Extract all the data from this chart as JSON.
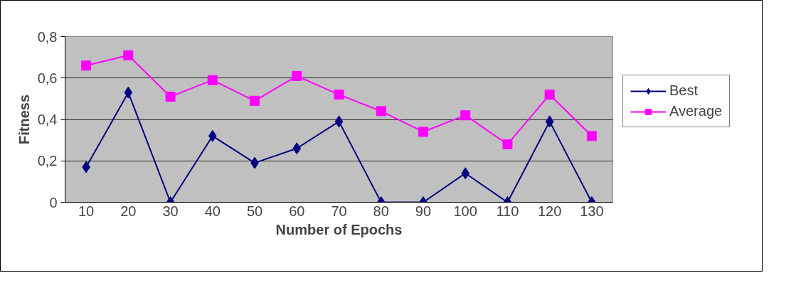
{
  "chart_data": {
    "type": "line",
    "xlabel": "Number of Epochs",
    "ylabel": "Fitness",
    "categories": [
      "10",
      "20",
      "30",
      "40",
      "50",
      "60",
      "70",
      "80",
      "90",
      "100",
      "110",
      "120",
      "130"
    ],
    "series": [
      {
        "name": "Best",
        "color": "#000080",
        "marker": "diamond",
        "values": [
          0.17,
          0.53,
          0,
          0.32,
          0.19,
          0.26,
          0.39,
          0,
          0,
          0.14,
          0,
          0.39,
          0
        ]
      },
      {
        "name": "Average",
        "color": "#ff00ff",
        "marker": "square",
        "values": [
          0.66,
          0.71,
          0.51,
          0.59,
          0.49,
          0.61,
          0.52,
          0.44,
          0.34,
          0.42,
          0.28,
          0.52,
          0.32
        ]
      }
    ],
    "ylim": [
      0,
      0.8
    ],
    "yticks": [
      {
        "value": 0,
        "label": "0"
      },
      {
        "value": 0.2,
        "label": "0,2"
      },
      {
        "value": 0.4,
        "label": "0,4"
      },
      {
        "value": 0.6,
        "label": "0,6"
      },
      {
        "value": 0.8,
        "label": "0,8"
      }
    ],
    "grid": "y",
    "legend": "right"
  }
}
